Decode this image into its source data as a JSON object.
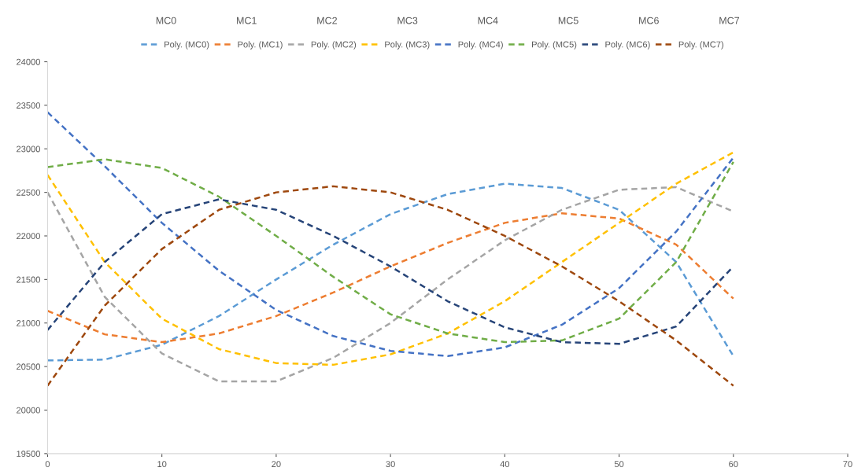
{
  "chart_data": {
    "type": "line",
    "x": [
      0,
      5,
      10,
      15,
      20,
      25,
      30,
      35,
      40,
      45,
      50,
      55,
      60
    ],
    "xlim": [
      0,
      70
    ],
    "xticks": [
      0,
      10,
      20,
      30,
      40,
      50,
      60,
      70
    ],
    "ylim": [
      19500,
      24000
    ],
    "yticks": [
      19500,
      20000,
      20500,
      21000,
      21500,
      22000,
      22500,
      23000,
      23500,
      24000
    ],
    "grid": false,
    "legend": "top",
    "line_style": "dashed",
    "marker": "none",
    "annotations": [
      "MC0",
      "MC1",
      "MC2",
      "MC3",
      "MC4",
      "MC5",
      "MC6",
      "MC7"
    ],
    "series": [
      {
        "name": "Poly. (MC0)",
        "color": "#5b9bd5",
        "values": [
          20570,
          20580,
          20750,
          21080,
          21500,
          21900,
          22250,
          22480,
          22600,
          22550,
          22300,
          21700,
          20620
        ]
      },
      {
        "name": "Poly. (MC1)",
        "color": "#ed7d31",
        "values": [
          21140,
          20870,
          20780,
          20880,
          21080,
          21350,
          21650,
          21920,
          22150,
          22260,
          22200,
          21900,
          21280
        ]
      },
      {
        "name": "Poly. (MC2)",
        "color": "#a5a5a5",
        "values": [
          22500,
          21300,
          20650,
          20330,
          20330,
          20600,
          21000,
          21500,
          21950,
          22300,
          22530,
          22560,
          22280
        ]
      },
      {
        "name": "Poly. (MC3)",
        "color": "#ffc000",
        "values": [
          22700,
          21700,
          21050,
          20700,
          20540,
          20520,
          20640,
          20880,
          21250,
          21700,
          22150,
          22600,
          22960
        ]
      },
      {
        "name": "Poly. (MC4)",
        "color": "#4472c4",
        "values": [
          23420,
          22800,
          22150,
          21600,
          21150,
          20850,
          20680,
          20620,
          20720,
          20980,
          21400,
          22050,
          22900
        ]
      },
      {
        "name": "Poly. (MC5)",
        "color": "#70ad47",
        "values": [
          22790,
          22880,
          22780,
          22450,
          22000,
          21530,
          21100,
          20880,
          20780,
          20800,
          21050,
          21700,
          22850
        ]
      },
      {
        "name": "Poly. (MC6)",
        "color": "#264478",
        "values": [
          20920,
          21700,
          22250,
          22420,
          22300,
          22000,
          21650,
          21250,
          20950,
          20780,
          20760,
          20960,
          21650
        ]
      },
      {
        "name": "Poly. (MC7)",
        "color": "#9e480e",
        "values": [
          20280,
          21200,
          21850,
          22300,
          22500,
          22570,
          22500,
          22300,
          22000,
          21650,
          21250,
          20800,
          20280
        ]
      }
    ]
  }
}
